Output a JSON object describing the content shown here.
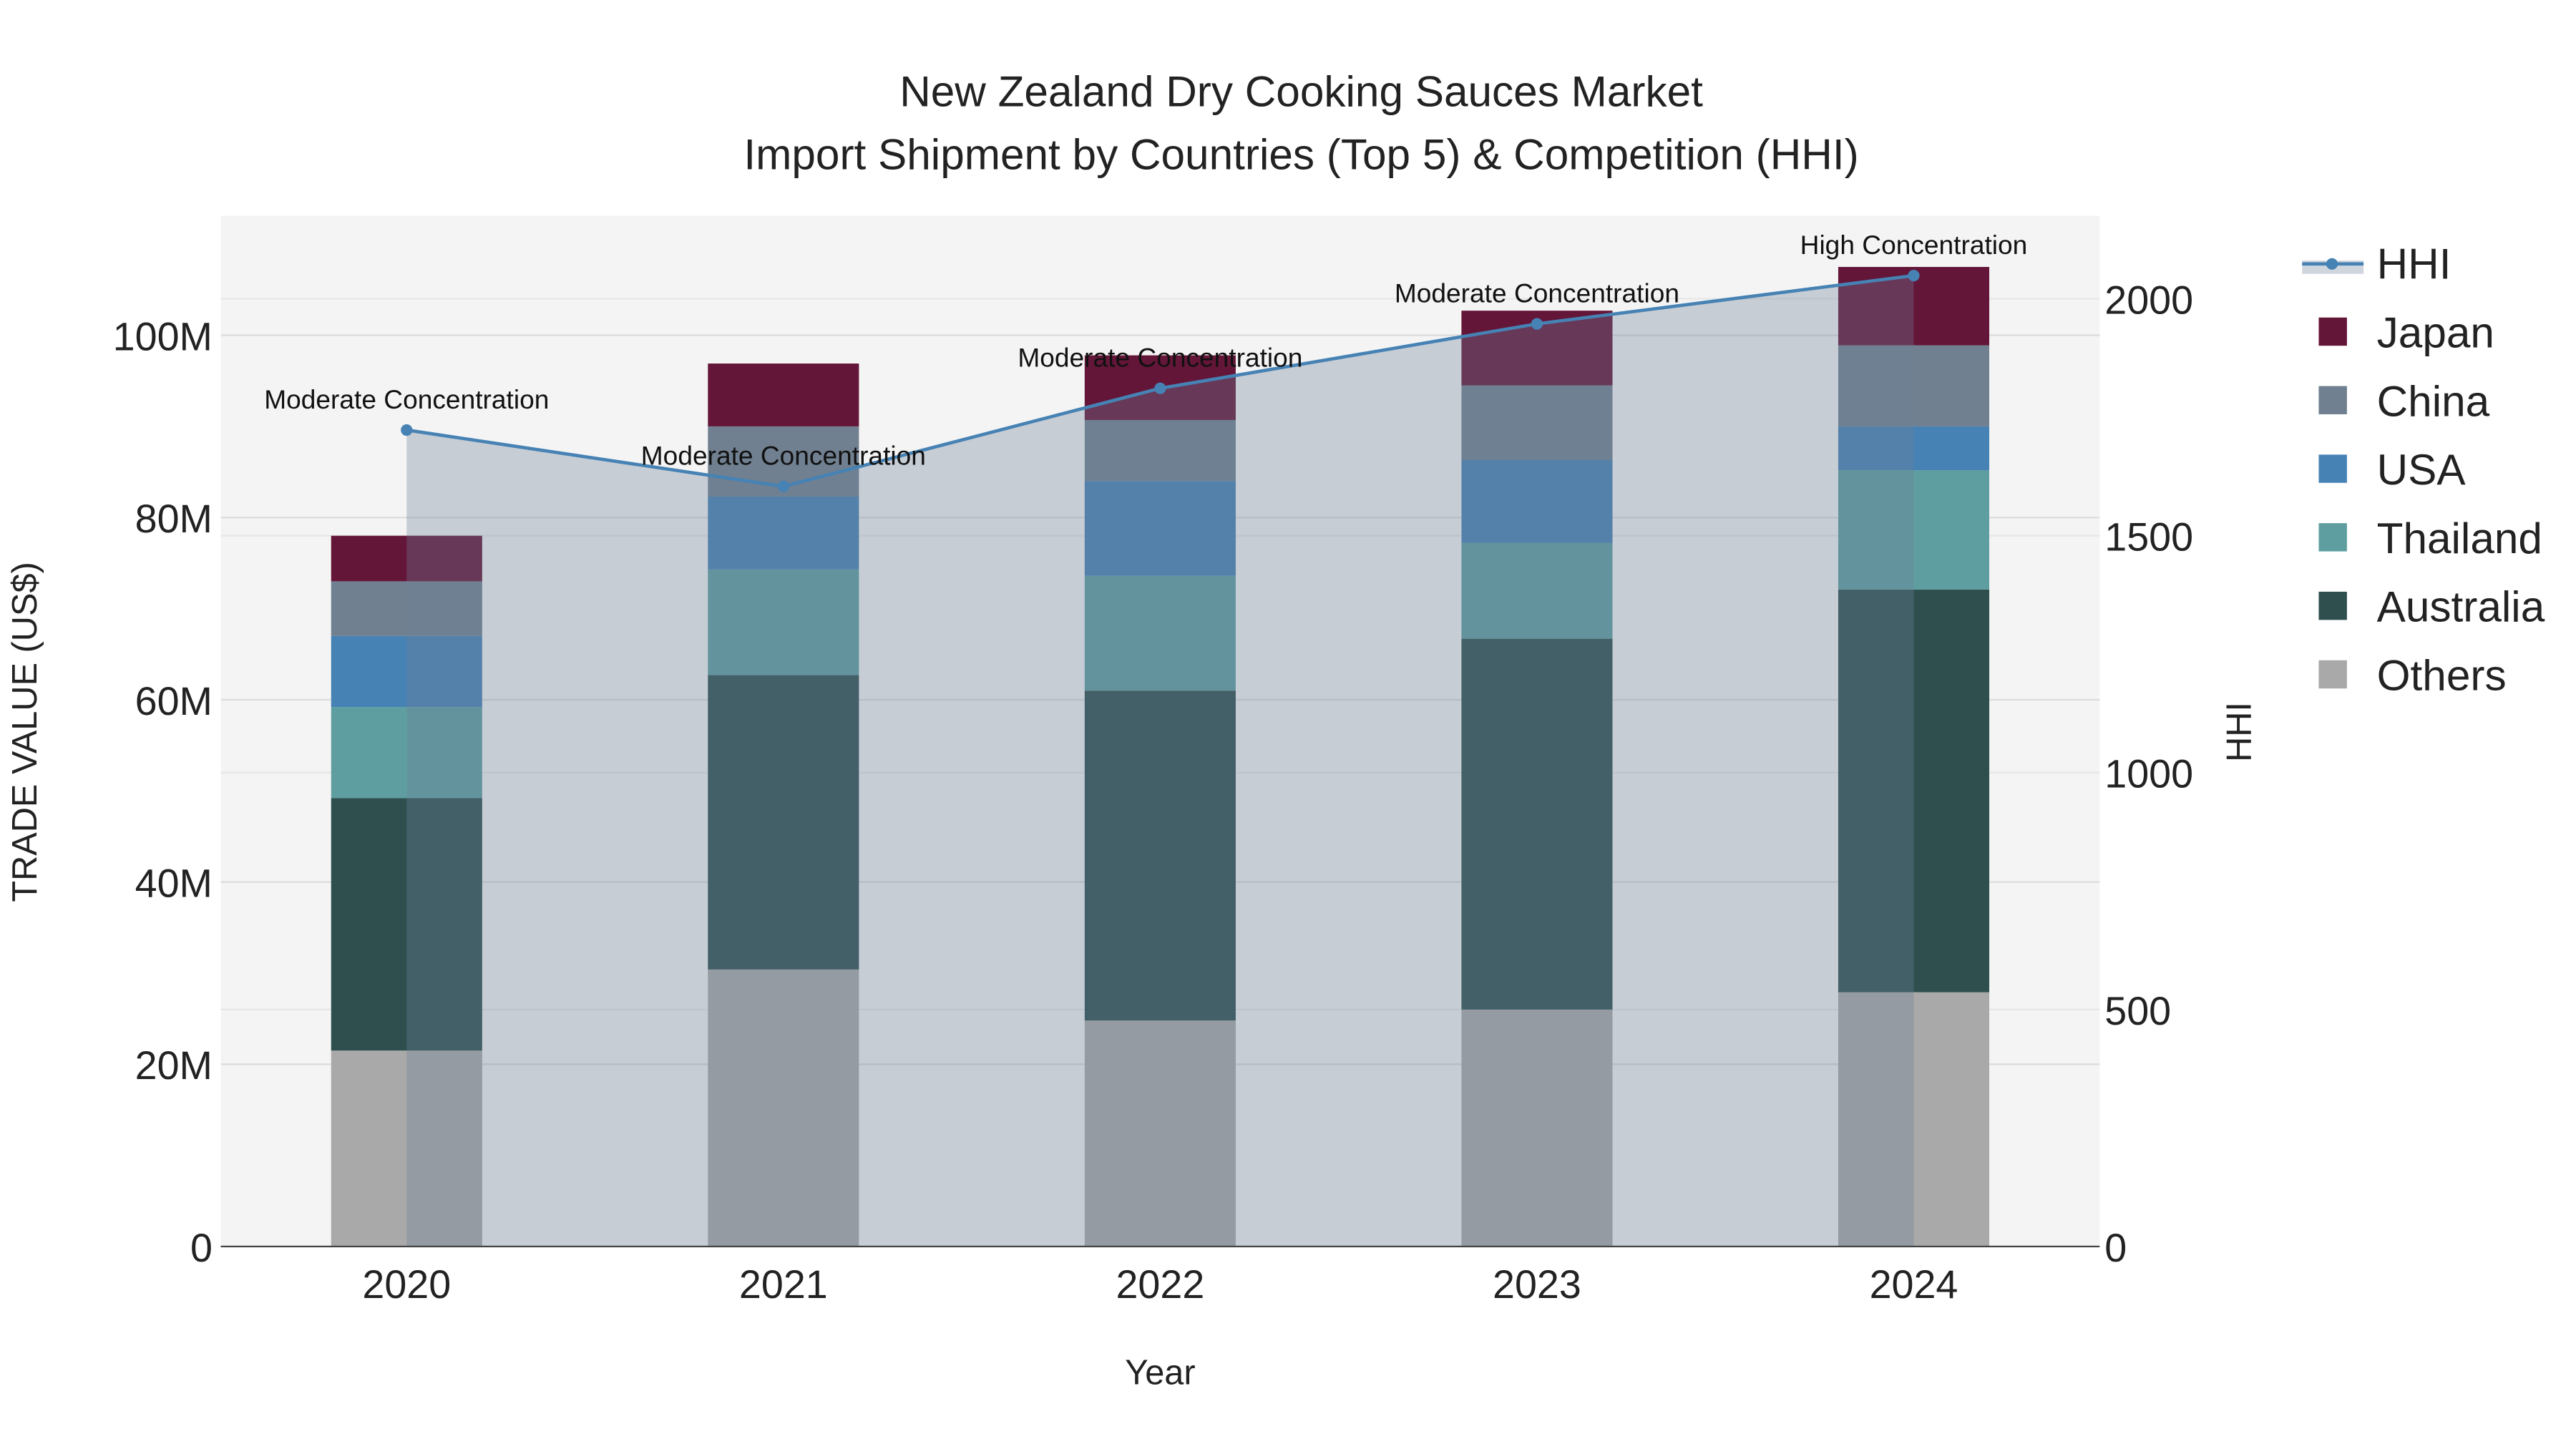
{
  "chart_data": {
    "type": "bar",
    "stacked": true,
    "title": "New Zealand Dry Cooking Sauces Market",
    "subtitle": "Import Shipment by Countries (Top 5) & Competition (HHI)",
    "xlabel": "Year",
    "ylabel": "TRADE VALUE (US$)",
    "y2label": "HHI",
    "categories": [
      "2020",
      "2021",
      "2022",
      "2023",
      "2024"
    ],
    "ylim": [
      0,
      110000000
    ],
    "y2lim": [
      0,
      2150
    ],
    "yticks": [
      0,
      20000000,
      40000000,
      60000000,
      80000000,
      100000000
    ],
    "yticklabels": [
      "0",
      "20M",
      "40M",
      "60M",
      "80M",
      "100M"
    ],
    "y2ticks": [
      0,
      500,
      1000,
      1500,
      2000
    ],
    "y2ticklabels": [
      "0",
      "500",
      "1000",
      "1500",
      "2000"
    ],
    "series": [
      {
        "name": "Others",
        "color": "#a9a9a9",
        "values": [
          21500000,
          30400000,
          24800000,
          26000000,
          27900000
        ]
      },
      {
        "name": "Australia",
        "color": "#2f4f4f",
        "values": [
          27700000,
          32300000,
          36200000,
          40700000,
          44200000
        ]
      },
      {
        "name": "Thailand",
        "color": "#5f9ea0",
        "values": [
          10000000,
          11600000,
          12600000,
          10500000,
          13100000
        ]
      },
      {
        "name": "USA",
        "color": "#4682b4",
        "values": [
          7800000,
          8000000,
          10400000,
          9100000,
          4800000
        ]
      },
      {
        "name": "China",
        "color": "#708090",
        "values": [
          6000000,
          7700000,
          6700000,
          8200000,
          8900000
        ]
      },
      {
        "name": "Japan",
        "color": "#641638",
        "values": [
          5000000,
          6900000,
          7100000,
          8200000,
          8600000
        ]
      }
    ],
    "hhi": {
      "name": "HHI",
      "color": "#4682b4",
      "values": [
        1723,
        1604,
        1811,
        1947,
        2049
      ],
      "annotations": [
        "Moderate Concentration",
        "Moderate Concentration",
        "Moderate Concentration",
        "Moderate Concentration",
        "High Concentration"
      ]
    },
    "legend": {
      "placement": "right",
      "order": [
        "HHI",
        "Japan",
        "China",
        "USA",
        "Thailand",
        "Australia",
        "Others"
      ]
    },
    "grid": true
  }
}
